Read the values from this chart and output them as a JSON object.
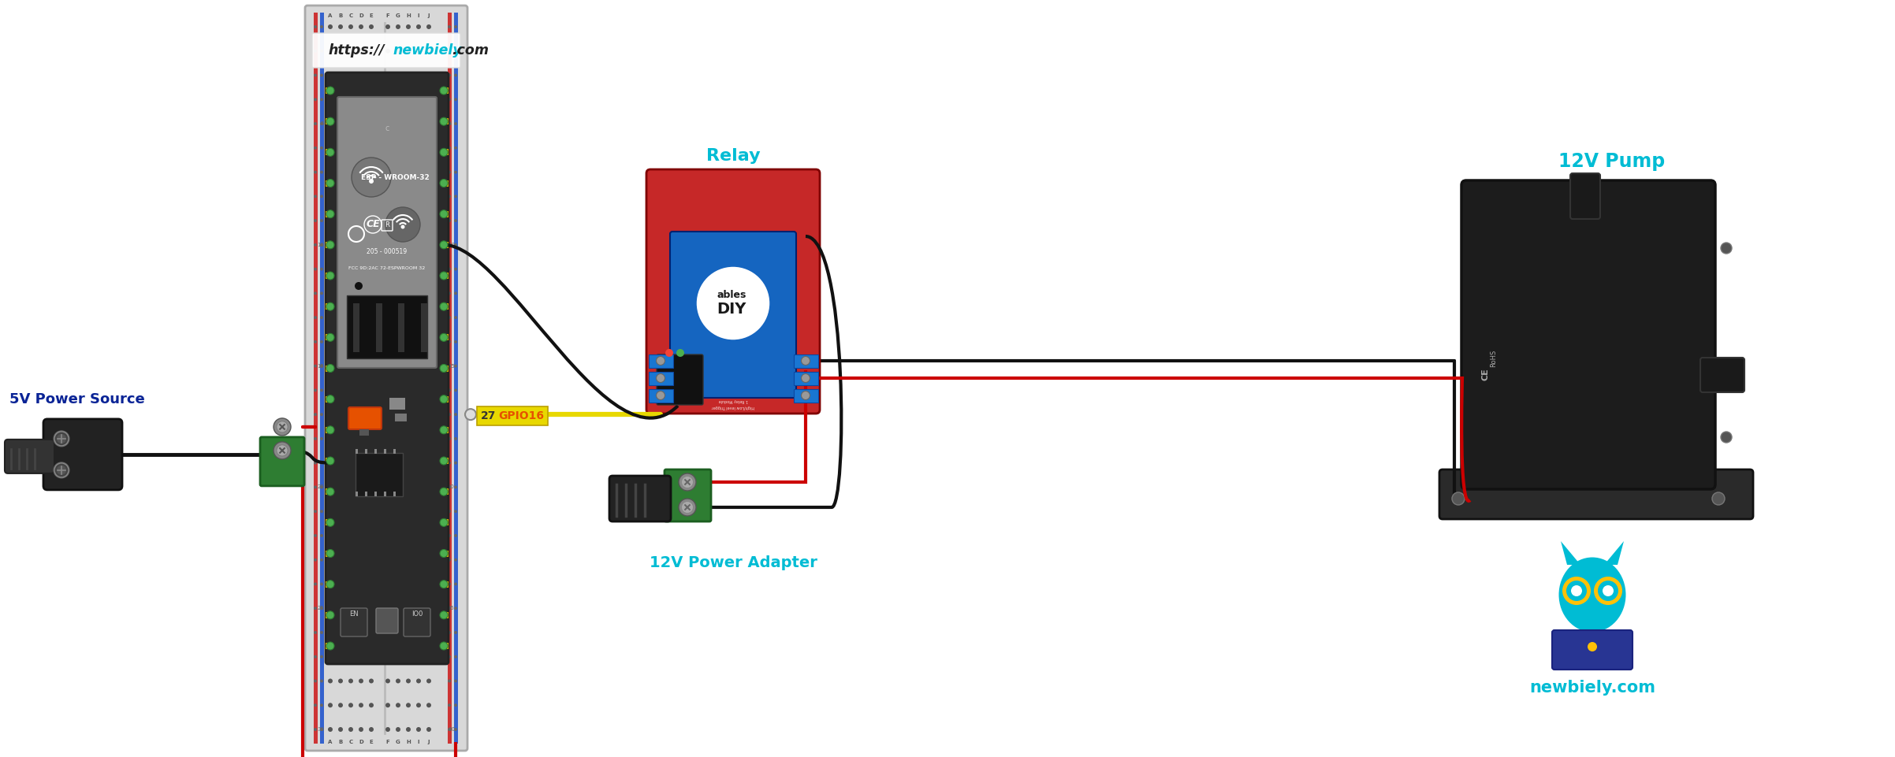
{
  "bg_color": "#ffffff",
  "url_prefix": "https://",
  "url_mid": "newbiely",
  "url_suffix": ".com",
  "label_5v": "5V Power Source",
  "label_relay": "Relay",
  "label_12v_pump": "12V Pump",
  "label_12v_adapter": "12V Power Adapter",
  "label_gpio16": "GPIO16",
  "label_pin27": "27",
  "label_newbiely_com": "newbiely.com",
  "cyan": "#00bcd4",
  "dark_blue_text": "#0a2496",
  "orange_text": "#e65100",
  "dark_text": "#333333",
  "wire_red": "#cc0000",
  "wire_black": "#111111",
  "wire_yellow": "#e8d800",
  "bb_body": "#d8d8d8",
  "bb_rail_red": "#cc2222",
  "bb_rail_blue": "#2255cc",
  "esp_bg": "#2a2a2a",
  "esp_module_bg": "#9e9e9e",
  "esp_pin_green": "#4caf50",
  "relay_red_bg": "#c62828",
  "relay_blue_bg": "#1565c0",
  "green_term": "#2e7d32",
  "pump_body": "#1c1c1c",
  "pump_mount": "#333333",
  "owl_cyan": "#00bcd4",
  "owl_gold": "#ffc107",
  "owl_laptop": "#283593"
}
